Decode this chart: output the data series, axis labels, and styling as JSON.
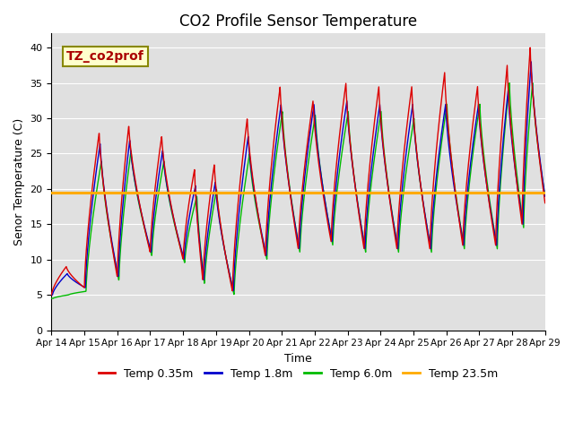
{
  "title": "CO2 Profile Sensor Temperature",
  "ylabel": "Senor Temperature (C)",
  "xlabel": "Time",
  "annotation_text": "TZ_co2prof",
  "ylim": [
    0,
    42
  ],
  "yticks": [
    0,
    5,
    10,
    15,
    20,
    25,
    30,
    35,
    40
  ],
  "x_tick_labels": [
    "Apr 14",
    "Apr 15",
    "Apr 16",
    "Apr 17",
    "Apr 18",
    "Apr 19",
    "Apr 20",
    "Apr 21",
    "Apr 22",
    "Apr 23",
    "Apr 24",
    "Apr 25",
    "Apr 26",
    "Apr 27",
    "Apr 28",
    "Apr 29"
  ],
  "color_red": "#dd0000",
  "color_blue": "#0000cc",
  "color_green": "#00bb00",
  "color_orange": "#ffaa00",
  "horizontal_line_y": 19.5,
  "legend_labels": [
    "Temp 0.35m",
    "Temp 1.8m",
    "Temp 6.0m",
    "Temp 23.5m"
  ],
  "bg_color": "#e0e0e0",
  "title_fontsize": 12,
  "label_fontsize": 9,
  "legend_fontsize": 9,
  "annotation_fontsize": 10
}
